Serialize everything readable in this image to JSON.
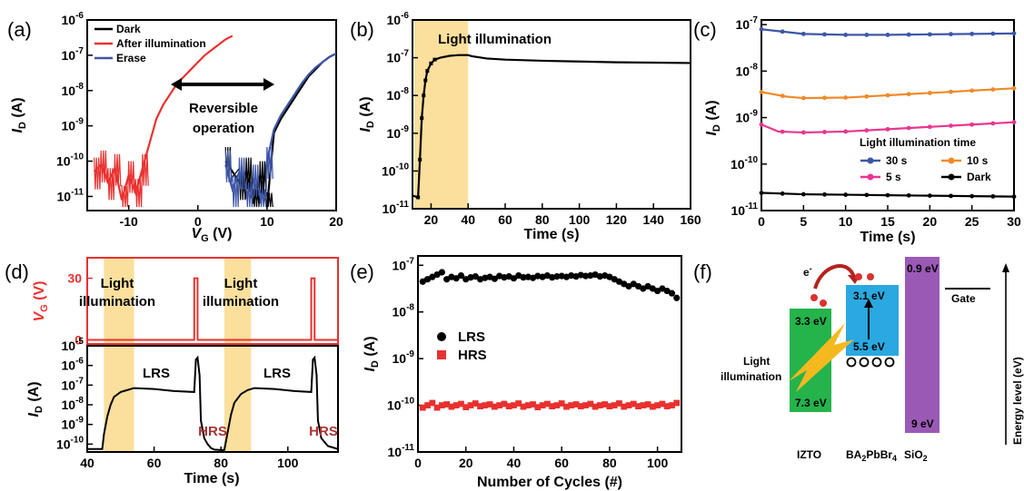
{
  "panel_labels": [
    "(a)",
    "(b)",
    "(c)",
    "(d)",
    "(e)",
    "(f)"
  ],
  "chart_data": [
    {
      "id": "a",
      "type": "line",
      "xlabel": "V",
      "xlabel_sub": "G",
      "xlabel_unit": " (V)",
      "ylabel": "I",
      "ylabel_sub": "D",
      "ylabel_unit": " (A)",
      "xlim": [
        -16,
        20
      ],
      "xticks": [
        "-10",
        "0",
        "10",
        "20"
      ],
      "xtick_values": [
        -10,
        0,
        10,
        20
      ],
      "ylog": true,
      "ylim_exp": [
        -11.4,
        -6
      ],
      "ytick_labels": [
        "10-11",
        "10-10",
        "10-9",
        "10-8",
        "10-7",
        "10-6"
      ],
      "legend": [
        "Dark",
        "After illumination",
        "Erase"
      ],
      "legend_position": "top-left",
      "annotation": [
        "Reversible",
        "operation"
      ],
      "series": [
        {
          "name": "Dark",
          "color": "#000000",
          "x": [
            4,
            6,
            7,
            8,
            9,
            10,
            11,
            12,
            13,
            14,
            15,
            16,
            17,
            18,
            19,
            20
          ],
          "y_exp": [
            -10.0,
            -10.6,
            -10.3,
            -11.2,
            -10.4,
            -11.3,
            -9.2,
            -8.8,
            -8.5,
            -8.2,
            -7.9,
            -7.6,
            -7.4,
            -7.2,
            -7.05,
            -6.95
          ]
        },
        {
          "name": "After illumination",
          "color": "#e8312f",
          "x": [
            -15,
            -14,
            -13,
            -12,
            -11,
            -10,
            -9,
            -8,
            -7,
            -6,
            -5,
            -4,
            -3,
            -2,
            -1,
            0,
            1,
            2,
            3,
            4,
            5
          ],
          "y_exp": [
            -10.3,
            -10.1,
            -10.6,
            -10.2,
            -11.1,
            -10.4,
            -10.9,
            -10.2,
            -9.5,
            -8.8,
            -8.4,
            -8.1,
            -7.8,
            -7.6,
            -7.4,
            -7.2,
            -7.0,
            -6.85,
            -6.7,
            -6.55,
            -6.45
          ]
        },
        {
          "name": "Erase",
          "color": "#3d56a6",
          "x": [
            4,
            5,
            6,
            7,
            8,
            9,
            10,
            11,
            12,
            13,
            14,
            15,
            16,
            17,
            18,
            19,
            20
          ],
          "y_exp": [
            -10.1,
            -10.8,
            -10.3,
            -11.0,
            -10.5,
            -11.2,
            -10.0,
            -9.1,
            -8.7,
            -8.4,
            -8.1,
            -7.8,
            -7.55,
            -7.35,
            -7.2,
            -7.05,
            -6.95
          ]
        }
      ]
    },
    {
      "id": "b",
      "type": "line",
      "xlabel": "Time (s)",
      "ylabel": "I",
      "ylabel_sub": "D",
      "ylabel_unit": " (A)",
      "xlim": [
        10,
        160
      ],
      "xticks": [
        "20",
        "40",
        "60",
        "80",
        "100",
        "120",
        "140",
        "160"
      ],
      "xtick_values": [
        20,
        40,
        60,
        80,
        100,
        120,
        140,
        160
      ],
      "ylog": true,
      "ylim_exp": [
        -11,
        -6
      ],
      "ytick_labels": [
        "10-11",
        "10-10",
        "10-9",
        "10-8",
        "10-7",
        "10-6"
      ],
      "band": [
        11,
        40
      ],
      "annotation": "Light illumination",
      "series": [
        {
          "name": "",
          "color": "#000000",
          "x": [
            10,
            13,
            14,
            15,
            16,
            17,
            18,
            20,
            22,
            25,
            30,
            35,
            40,
            42,
            50,
            60,
            80,
            100,
            120,
            140,
            160
          ],
          "y_exp": [
            -10.65,
            -10.7,
            -9.7,
            -8.6,
            -8.0,
            -7.6,
            -7.35,
            -7.15,
            -7.05,
            -7.0,
            -6.95,
            -6.93,
            -6.93,
            -6.96,
            -7.02,
            -7.05,
            -7.08,
            -7.1,
            -7.12,
            -7.13,
            -7.14
          ]
        }
      ]
    },
    {
      "id": "c",
      "type": "line",
      "xlabel": "Time (s)",
      "ylabel": "I",
      "ylabel_sub": "D",
      "ylabel_unit": " (A)",
      "xlim": [
        0,
        30
      ],
      "xticks": [
        "0",
        "5",
        "10",
        "15",
        "20",
        "25",
        "30"
      ],
      "xtick_values": [
        0,
        5,
        10,
        15,
        20,
        25,
        30
      ],
      "ylog": true,
      "ylim_exp": [
        -11,
        -6.9
      ],
      "ytick_labels": [
        "10-11",
        "10-10",
        "10-9",
        "10-8",
        "10-7"
      ],
      "legend_title": "Light illumination time",
      "legend": [
        "30 s",
        "10 s",
        "5 s",
        "Dark"
      ],
      "legend_position": "lower-right",
      "series": [
        {
          "name": "30 s",
          "color": "#3d56a6",
          "x": [
            0,
            5,
            10,
            15,
            20,
            25,
            30
          ],
          "y_exp": [
            -7.1,
            -7.2,
            -7.22,
            -7.22,
            -7.21,
            -7.2,
            -7.19
          ]
        },
        {
          "name": "10 s",
          "color": "#f08a2a",
          "x": [
            0,
            3,
            5,
            10,
            15,
            20,
            25,
            30
          ],
          "y_exp": [
            -8.45,
            -8.55,
            -8.58,
            -8.57,
            -8.52,
            -8.47,
            -8.42,
            -8.37
          ]
        },
        {
          "name": "5 s",
          "color": "#e8368f",
          "x": [
            0,
            2,
            5,
            10,
            15,
            20,
            25,
            30
          ],
          "y_exp": [
            -9.15,
            -9.3,
            -9.32,
            -9.3,
            -9.25,
            -9.2,
            -9.15,
            -9.1
          ]
        },
        {
          "name": "Dark",
          "color": "#000000",
          "x": [
            0,
            5,
            10,
            15,
            20,
            25,
            30
          ],
          "y_exp": [
            -10.62,
            -10.65,
            -10.66,
            -10.67,
            -10.68,
            -10.69,
            -10.7
          ]
        }
      ]
    },
    {
      "id": "d",
      "type": "line",
      "xlabel": "Time (s)",
      "xlim": [
        40,
        115
      ],
      "xticks": [
        "40",
        "60",
        "80",
        "100"
      ],
      "xtick_values": [
        40,
        60,
        80,
        100
      ],
      "bands": [
        [
          45,
          54
        ],
        [
          81,
          89
        ]
      ],
      "band_label": [
        "Light",
        "illumination"
      ],
      "top": {
        "ylabel": "V",
        "ylabel_sub": "G",
        "ylabel_unit": " (V)",
        "ylim": [
          -2,
          40
        ],
        "yticks": [
          "0",
          "30"
        ],
        "ytick_values": [
          0,
          30
        ],
        "color": "#e8312f",
        "x": [
          40,
          72,
          72,
          73,
          73,
          107,
          107,
          108,
          108,
          115
        ],
        "y": [
          0,
          0,
          30,
          30,
          0,
          0,
          30,
          30,
          0,
          0
        ]
      },
      "bottom": {
        "ylabel": "I",
        "ylabel_sub": "D",
        "ylabel_unit": " (A)",
        "ylog": true,
        "ylim_exp": [
          -10.4,
          -5
        ],
        "ytick_labels": [
          "10-10",
          "10-9",
          "10-8",
          "10-7",
          "10-6",
          "10-5"
        ],
        "color": "#000000",
        "labels": [
          "LRS",
          "HRS",
          "LRS",
          "HRS"
        ],
        "x": [
          40,
          44.5,
          45,
          46,
          47,
          48,
          50,
          52,
          54,
          60,
          66,
          72,
          72.5,
          73,
          73.6,
          74,
          75,
          76,
          77,
          78,
          80,
          81,
          82,
          83,
          84,
          86,
          88,
          90,
          96,
          102,
          107,
          107.5,
          108,
          108.6,
          109,
          110,
          112,
          115
        ],
        "y_exp": [
          -10.25,
          -10.25,
          -9.5,
          -8.6,
          -8.0,
          -7.6,
          -7.35,
          -7.25,
          -7.15,
          -7.2,
          -7.3,
          -7.35,
          -5.7,
          -5.6,
          -6.5,
          -8.8,
          -9.7,
          -10.0,
          -10.2,
          -10.28,
          -10.3,
          -10.3,
          -9.4,
          -8.5,
          -7.9,
          -7.45,
          -7.25,
          -7.15,
          -7.2,
          -7.3,
          -7.35,
          -5.7,
          -5.6,
          -6.5,
          -8.8,
          -9.7,
          -10.1,
          -10.25
        ]
      }
    },
    {
      "id": "e",
      "type": "scatter",
      "xlabel": "Number of Cycles (#)",
      "ylabel": "I",
      "ylabel_sub": "D",
      "ylabel_unit": " (A)",
      "xlim": [
        0,
        110
      ],
      "xticks": [
        "0",
        "20",
        "40",
        "60",
        "80",
        "100"
      ],
      "xtick_values": [
        0,
        20,
        40,
        60,
        80,
        100
      ],
      "ylog": true,
      "ylim_exp": [
        -11,
        -6.8
      ],
      "ytick_labels": [
        "10-11",
        "10-10",
        "10-9",
        "10-8",
        "10-7"
      ],
      "legend": [
        "LRS",
        "HRS"
      ],
      "legend_position": "left",
      "series": [
        {
          "name": "LRS",
          "color": "#000000",
          "marker": "circle",
          "x": [
            2,
            4,
            6,
            8,
            10,
            12,
            14,
            16,
            18,
            20,
            22,
            24,
            26,
            28,
            30,
            32,
            34,
            36,
            38,
            40,
            42,
            44,
            46,
            48,
            50,
            52,
            54,
            56,
            58,
            60,
            62,
            64,
            66,
            68,
            70,
            72,
            74,
            76,
            78,
            80,
            82,
            84,
            86,
            88,
            90,
            92,
            94,
            96,
            98,
            100,
            102,
            104,
            106,
            108
          ],
          "y_exp": [
            -7.35,
            -7.3,
            -7.25,
            -7.2,
            -7.15,
            -7.3,
            -7.25,
            -7.28,
            -7.22,
            -7.3,
            -7.26,
            -7.24,
            -7.3,
            -7.27,
            -7.25,
            -7.29,
            -7.23,
            -7.26,
            -7.24,
            -7.28,
            -7.22,
            -7.26,
            -7.25,
            -7.27,
            -7.23,
            -7.25,
            -7.22,
            -7.26,
            -7.24,
            -7.23,
            -7.25,
            -7.22,
            -7.24,
            -7.21,
            -7.23,
            -7.22,
            -7.2,
            -7.24,
            -7.22,
            -7.25,
            -7.3,
            -7.35,
            -7.4,
            -7.45,
            -7.4,
            -7.45,
            -7.5,
            -7.45,
            -7.5,
            -7.55,
            -7.5,
            -7.55,
            -7.6,
            -7.7
          ]
        },
        {
          "name": "HRS",
          "color": "#e8312f",
          "marker": "square",
          "x": [
            2,
            4,
            6,
            8,
            10,
            12,
            14,
            16,
            18,
            20,
            22,
            24,
            26,
            28,
            30,
            32,
            34,
            36,
            38,
            40,
            42,
            44,
            46,
            48,
            50,
            52,
            54,
            56,
            58,
            60,
            62,
            64,
            66,
            68,
            70,
            72,
            74,
            76,
            78,
            80,
            82,
            84,
            86,
            88,
            90,
            92,
            94,
            96,
            98,
            100,
            102,
            104,
            106,
            108
          ],
          "y_exp": [
            -10.05,
            -10.0,
            -9.95,
            -10.05,
            -10.0,
            -9.98,
            -10.03,
            -10.0,
            -9.97,
            -10.04,
            -10.0,
            -9.96,
            -10.02,
            -10.0,
            -9.98,
            -10.03,
            -10.0,
            -9.97,
            -10.02,
            -10.0,
            -9.96,
            -10.03,
            -10.0,
            -9.98,
            -10.04,
            -10.0,
            -9.97,
            -10.02,
            -10.0,
            -9.96,
            -10.03,
            -10.0,
            -9.98,
            -10.02,
            -10.0,
            -9.97,
            -10.03,
            -10.0,
            -9.98,
            -10.02,
            -10.0,
            -9.96,
            -10.03,
            -10.0,
            -9.97,
            -10.02,
            -10.0,
            -9.98,
            -10.03,
            -10.0,
            -9.97,
            -10.02,
            -10.0,
            -9.95
          ]
        }
      ]
    }
  ],
  "diagram_f": {
    "electron_label": "e",
    "electron_sup": "-",
    "light_label": [
      "Light",
      "illumination"
    ],
    "gate_label": "Gate",
    "energy_axis_label": "Energy level (eV)",
    "izto": {
      "label": "IZTO",
      "top": "3.3 eV",
      "bottom": "7.3 eV",
      "color": "#25b34b"
    },
    "perov": {
      "label_main": "BA",
      "label_sub1": "2",
      "label_mid": "PbBr",
      "label_sub2": "4",
      "top": "3.1 eV",
      "bottom": "5.5 eV",
      "color": "#2aa8e0"
    },
    "sio2": {
      "label_main": "SiO",
      "label_sub": "2",
      "top": "0.9 eV",
      "bottom": "9 eV",
      "color": "#9b59b6"
    },
    "colors": {
      "arrow": "#b5221c",
      "dot": "#d9322e",
      "bolt": "#f5b920"
    }
  }
}
